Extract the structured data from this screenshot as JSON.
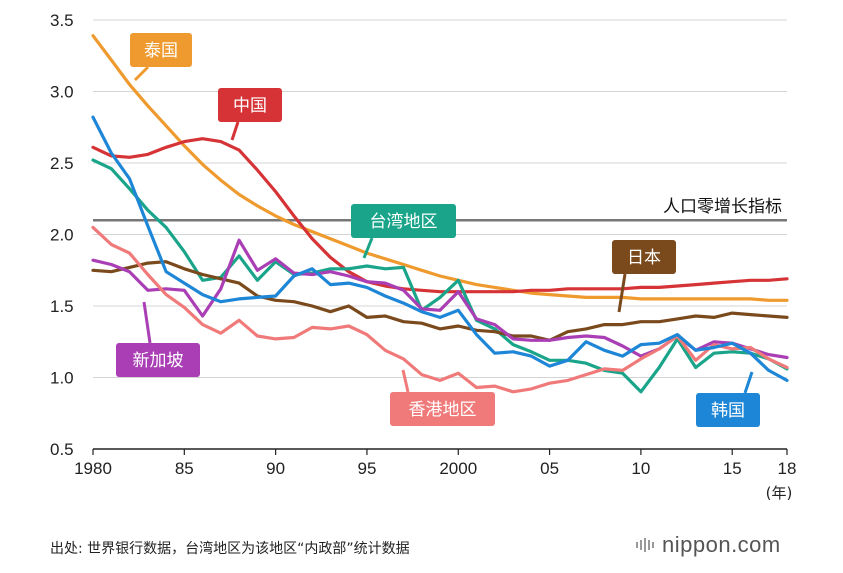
{
  "chart_data": {
    "type": "line",
    "x": [
      1980,
      1981,
      1982,
      1983,
      1984,
      1985,
      1986,
      1987,
      1988,
      1989,
      1990,
      1991,
      1992,
      1993,
      1994,
      1995,
      1996,
      1997,
      1998,
      1999,
      2000,
      2001,
      2002,
      2003,
      2004,
      2005,
      2006,
      2007,
      2008,
      2009,
      2010,
      2011,
      2012,
      2013,
      2014,
      2015,
      2016,
      2017,
      2018
    ],
    "xlim": [
      1980,
      2018
    ],
    "ylim": [
      0.5,
      3.5
    ],
    "yticks": [
      "0.5",
      "1.0",
      "1.5",
      "2.0",
      "2.5",
      "3.0",
      "3.5"
    ],
    "xtick_values": [
      1980,
      1985,
      1990,
      1995,
      2000,
      2005,
      2010,
      2015,
      2018
    ],
    "xtick_labels": [
      "1980",
      "85",
      "90",
      "95",
      "2000",
      "05",
      "10",
      "15",
      "18"
    ],
    "x_unit": "(年)",
    "grid": true,
    "reference_line": {
      "value": 2.1,
      "label": "人口零增长指标",
      "color": "#777777"
    },
    "series": [
      {
        "name": "泰国",
        "color": "#ef9a2e",
        "values": [
          3.39,
          3.22,
          3.05,
          2.9,
          2.76,
          2.62,
          2.49,
          2.38,
          2.28,
          2.2,
          2.13,
          2.07,
          2.02,
          1.97,
          1.92,
          1.87,
          1.83,
          1.79,
          1.75,
          1.71,
          1.68,
          1.65,
          1.63,
          1.61,
          1.59,
          1.58,
          1.57,
          1.56,
          1.56,
          1.56,
          1.55,
          1.55,
          1.55,
          1.55,
          1.55,
          1.55,
          1.55,
          1.54,
          1.54
        ]
      },
      {
        "name": "中国",
        "color": "#d63336",
        "values": [
          2.61,
          2.55,
          2.54,
          2.56,
          2.61,
          2.65,
          2.67,
          2.65,
          2.59,
          2.45,
          2.3,
          2.13,
          1.97,
          1.84,
          1.74,
          1.67,
          1.64,
          1.62,
          1.61,
          1.6,
          1.6,
          1.6,
          1.6,
          1.6,
          1.61,
          1.61,
          1.62,
          1.62,
          1.62,
          1.62,
          1.63,
          1.63,
          1.64,
          1.65,
          1.66,
          1.67,
          1.68,
          1.68,
          1.69
        ]
      },
      {
        "name": "台湾地区",
        "color": "#1aa58a",
        "values": [
          2.52,
          2.46,
          2.32,
          2.17,
          2.05,
          1.88,
          1.68,
          1.7,
          1.85,
          1.68,
          1.81,
          1.72,
          1.73,
          1.76,
          1.76,
          1.78,
          1.76,
          1.77,
          1.47,
          1.56,
          1.68,
          1.4,
          1.34,
          1.23,
          1.18,
          1.12,
          1.12,
          1.1,
          1.05,
          1.03,
          0.9,
          1.07,
          1.27,
          1.07,
          1.17,
          1.18,
          1.17,
          1.13,
          1.06
        ]
      },
      {
        "name": "日本",
        "color": "#7a4a1d",
        "values": [
          1.75,
          1.74,
          1.77,
          1.8,
          1.81,
          1.76,
          1.72,
          1.69,
          1.66,
          1.57,
          1.54,
          1.53,
          1.5,
          1.46,
          1.5,
          1.42,
          1.43,
          1.39,
          1.38,
          1.34,
          1.36,
          1.33,
          1.32,
          1.29,
          1.29,
          1.26,
          1.32,
          1.34,
          1.37,
          1.37,
          1.39,
          1.39,
          1.41,
          1.43,
          1.42,
          1.45,
          1.44,
          1.43,
          1.42
        ]
      },
      {
        "name": "新加坡",
        "color": "#a93eb5",
        "values": [
          1.82,
          1.79,
          1.74,
          1.61,
          1.62,
          1.61,
          1.43,
          1.62,
          1.96,
          1.75,
          1.83,
          1.73,
          1.72,
          1.74,
          1.71,
          1.67,
          1.66,
          1.61,
          1.48,
          1.47,
          1.6,
          1.41,
          1.37,
          1.27,
          1.26,
          1.26,
          1.28,
          1.29,
          1.28,
          1.22,
          1.15,
          1.2,
          1.29,
          1.19,
          1.25,
          1.24,
          1.2,
          1.16,
          1.14
        ]
      },
      {
        "name": "香港地区",
        "color": "#f07a7a",
        "values": [
          2.05,
          1.93,
          1.87,
          1.72,
          1.58,
          1.49,
          1.37,
          1.31,
          1.4,
          1.29,
          1.27,
          1.28,
          1.35,
          1.34,
          1.36,
          1.3,
          1.19,
          1.13,
          1.02,
          0.98,
          1.03,
          0.93,
          0.94,
          0.9,
          0.92,
          0.96,
          0.98,
          1.02,
          1.06,
          1.05,
          1.13,
          1.2,
          1.29,
          1.12,
          1.23,
          1.2,
          1.21,
          1.13,
          1.07
        ]
      },
      {
        "name": "韩国",
        "color": "#1e86d6",
        "values": [
          2.82,
          2.57,
          2.39,
          2.06,
          1.74,
          1.66,
          1.58,
          1.53,
          1.55,
          1.56,
          1.57,
          1.71,
          1.76,
          1.65,
          1.66,
          1.63,
          1.57,
          1.52,
          1.46,
          1.42,
          1.47,
          1.3,
          1.17,
          1.18,
          1.15,
          1.08,
          1.12,
          1.25,
          1.19,
          1.15,
          1.23,
          1.24,
          1.3,
          1.19,
          1.21,
          1.24,
          1.17,
          1.05,
          0.98
        ]
      }
    ]
  },
  "source_note": "出处: 世界银行数据，台湾地区为该地区“内政部”统计数据",
  "brand": "nippon.com"
}
